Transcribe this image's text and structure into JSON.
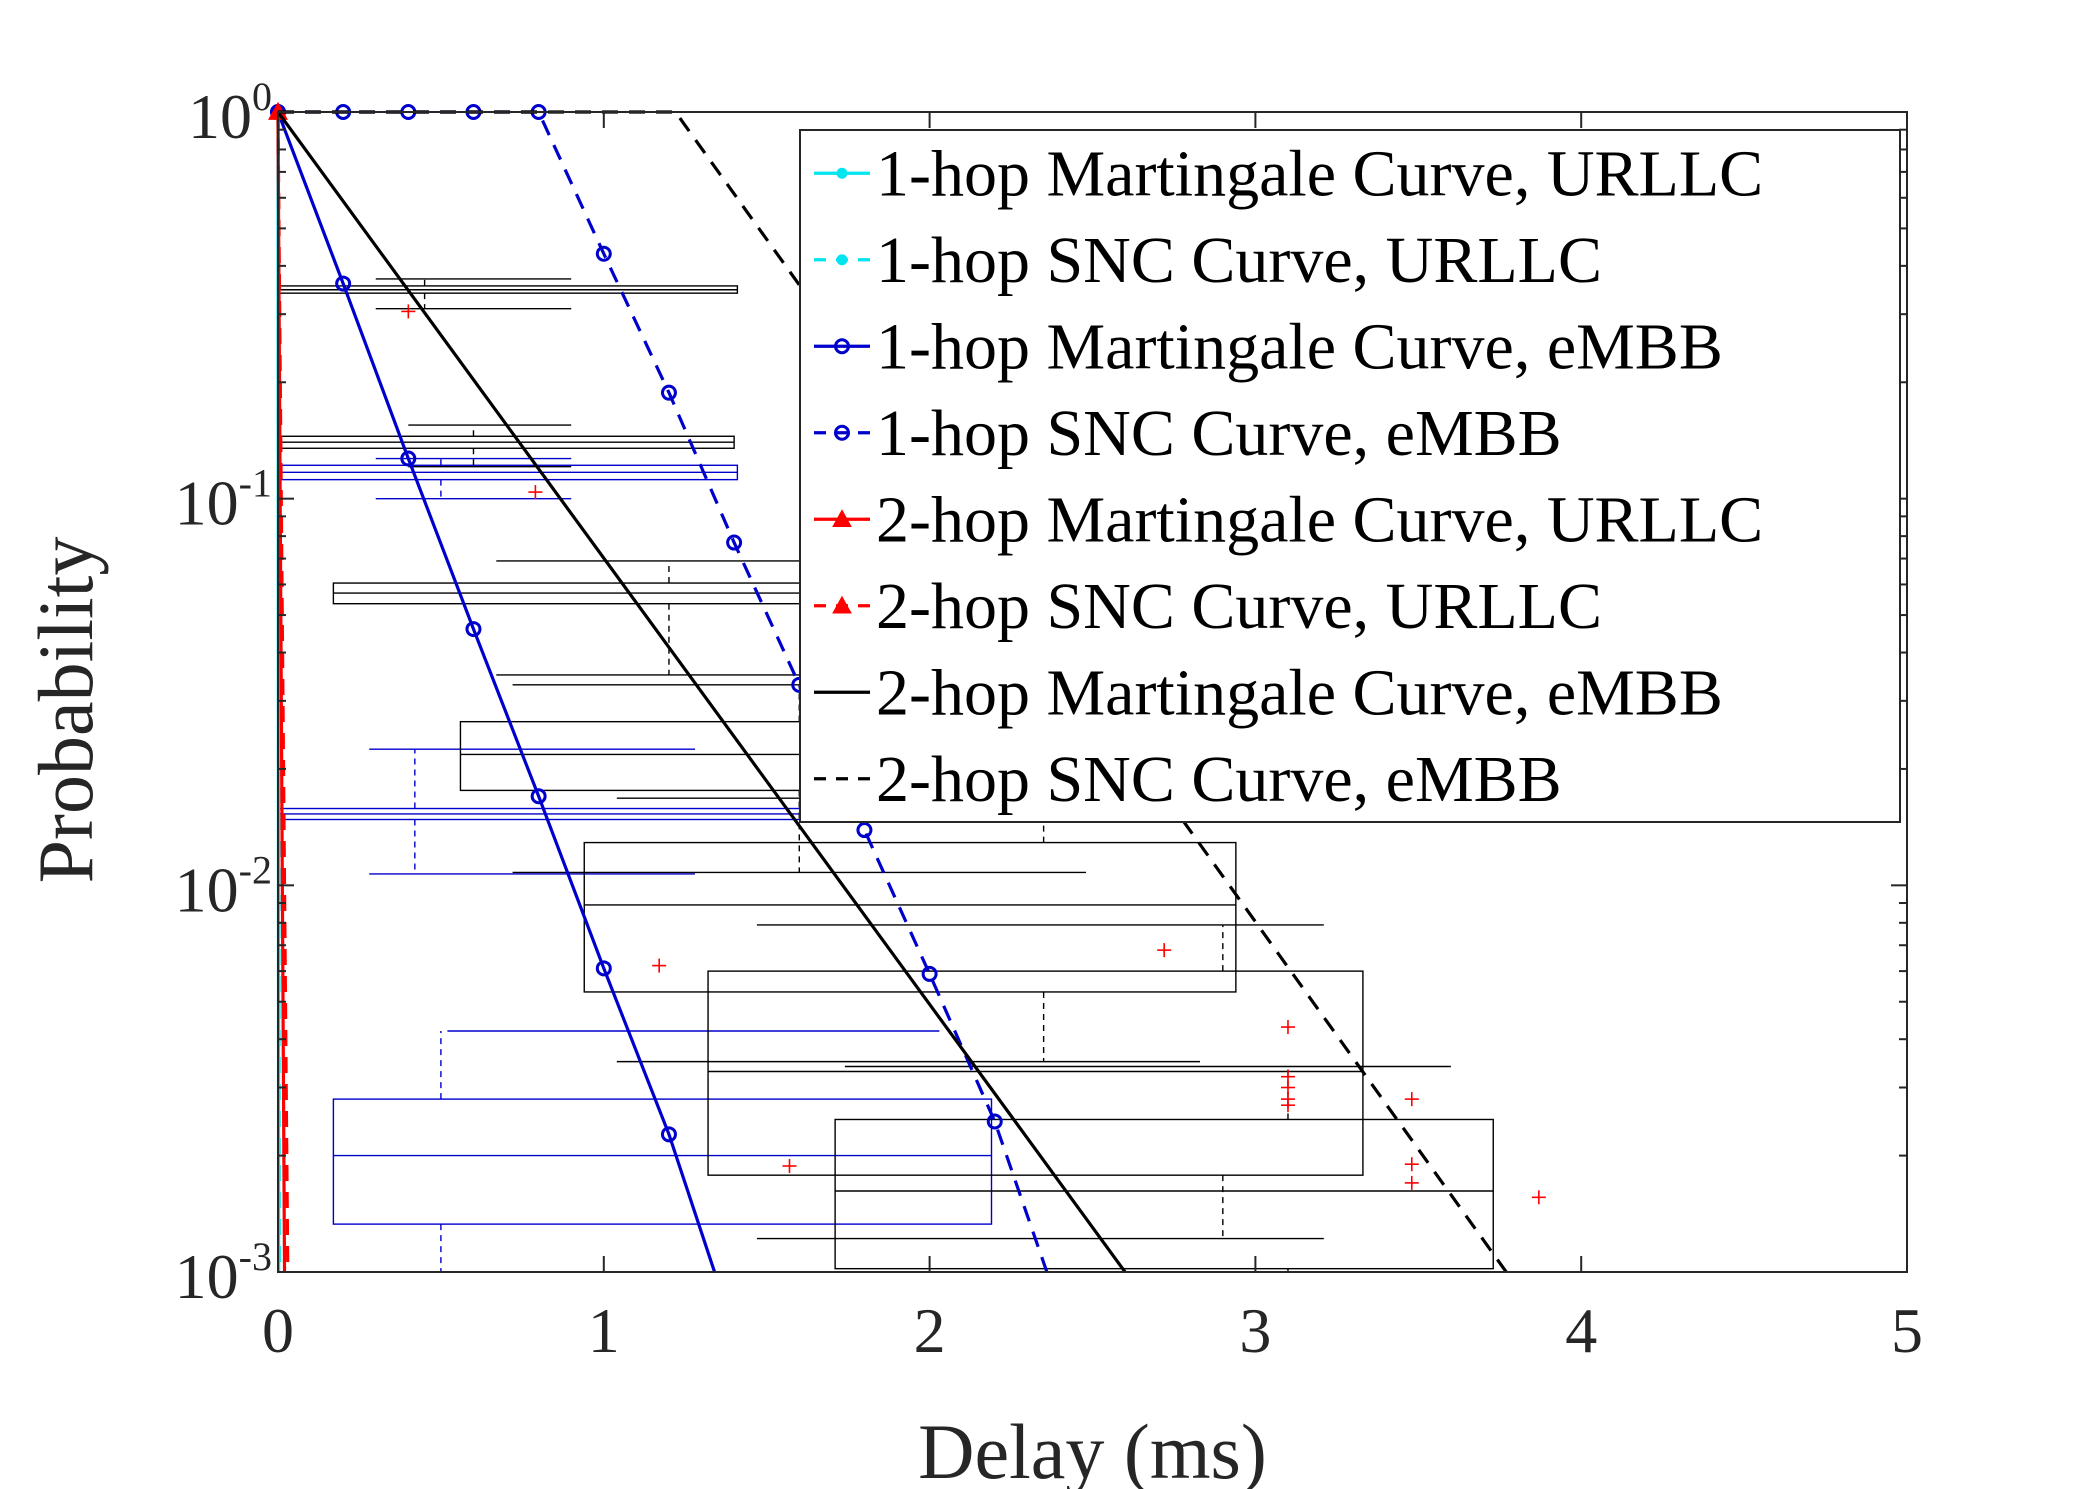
{
  "chart_data": {
    "type": "line",
    "xlabel": "Delay (ms)",
    "ylabel": "Probability",
    "xlim": [
      0,
      5
    ],
    "ylim": [
      0.001,
      1
    ],
    "yscale": "log",
    "x_ticks": [
      "0",
      "1",
      "2",
      "3",
      "4",
      "5"
    ],
    "y_ticks": [
      {
        "base": "10",
        "exp": "0",
        "value": 1
      },
      {
        "base": "10",
        "exp": "-1",
        "value": 0.1
      },
      {
        "base": "10",
        "exp": "-2",
        "value": 0.01
      },
      {
        "base": "10",
        "exp": "-3",
        "value": 0.001
      }
    ],
    "grid": false,
    "legend_position": "top-right",
    "series": [
      {
        "name": "1-hop Martingale Curve, URLLC",
        "color": "#00e5ee",
        "dash": "solid",
        "marker": "dot",
        "x": [
          0,
          0.002
        ],
        "y": [
          1,
          0.001
        ]
      },
      {
        "name": "1-hop SNC Curve, URLLC",
        "color": "#00e5ee",
        "dash": "dashed",
        "marker": "dot",
        "x": [
          0,
          0.004
        ],
        "y": [
          1,
          0.001
        ]
      },
      {
        "name": "1-hop Martingale Curve, eMBB",
        "color": "#0000cc",
        "dash": "solid",
        "marker": "circle",
        "x": [
          0,
          0.2,
          0.4,
          0.6,
          0.8,
          1.0,
          1.2,
          1.34
        ],
        "y": [
          1,
          0.36,
          0.127,
          0.046,
          0.017,
          0.0061,
          0.00227,
          0.001
        ]
      },
      {
        "name": "1-hop SNC Curve, eMBB",
        "color": "#0000cc",
        "dash": "dashed",
        "marker": "circle",
        "x": [
          0,
          0.2,
          0.4,
          0.6,
          0.8,
          1.0,
          1.2,
          1.4,
          1.6,
          1.8,
          2.0,
          2.2,
          2.36
        ],
        "y": [
          1,
          1,
          1,
          1,
          1,
          0.43,
          0.188,
          0.077,
          0.033,
          0.0139,
          0.0059,
          0.00245,
          0.001
        ]
      },
      {
        "name": "2-hop Martingale Curve, URLLC",
        "color": "#ff0000",
        "dash": "solid",
        "marker": "triangle",
        "x": [
          0,
          0.02
        ],
        "y": [
          1,
          0.001
        ]
      },
      {
        "name": "2-hop SNC Curve, URLLC",
        "color": "#ff0000",
        "dash": "dashed",
        "marker": "triangle",
        "x": [
          0,
          0.03
        ],
        "y": [
          1,
          0.001
        ]
      },
      {
        "name": "2-hop Martingale Curve, eMBB",
        "color": "#000000",
        "dash": "solid",
        "marker": "none",
        "x": [
          0,
          2.6
        ],
        "y": [
          1,
          0.001
        ]
      },
      {
        "name": "2-hop SNC Curve, eMBB",
        "color": "#000000",
        "dash": "dashed",
        "marker": "none",
        "x": [
          0,
          1.22,
          3.77
        ],
        "y": [
          1,
          1,
          0.001
        ]
      }
    ],
    "boxplots": [
      {
        "color": "#0000cc",
        "x_center": 0.5,
        "x_box": [
          0.17,
          2.19
        ],
        "x_whiskers": [
          0.52,
          2.03
        ],
        "y_box": [
          0.00133,
          0.0028
        ],
        "y_median": 0.002,
        "y_whiskers": [
          0.001,
          0.0042
        ]
      },
      {
        "color": "#0000cc",
        "x_center": 0.42,
        "x_box": [
          0.0,
          1.76
        ],
        "x_whiskers": [
          0.28,
          1.28
        ],
        "y_box": [
          0.0148,
          0.0158
        ],
        "y_median": 0.0153,
        "y_whiskers": [
          0.0107,
          0.0225
        ]
      },
      {
        "color": "#0000cc",
        "x_center": 0.5,
        "x_box": [
          0.0,
          1.41
        ],
        "x_whiskers": [
          0.3,
          0.9
        ],
        "y_box": [
          0.112,
          0.122
        ],
        "y_median": 0.117,
        "y_whiskers": [
          0.1,
          0.127
        ]
      },
      {
        "color": "#000000",
        "x_center": 0.45,
        "x_box": [
          0.0,
          1.41
        ],
        "x_whiskers": [
          0.3,
          0.9
        ],
        "y_box": [
          0.34,
          0.355
        ],
        "y_median": 0.347,
        "y_whiskers": [
          0.31,
          0.37
        ]
      },
      {
        "color": "#000000",
        "x_center": 0.6,
        "x_box": [
          0.0,
          1.4
        ],
        "x_whiskers": [
          0.4,
          0.9
        ],
        "y_box": [
          0.135,
          0.145
        ],
        "y_median": 0.14,
        "y_whiskers": [
          0.121,
          0.155
        ]
      },
      {
        "color": "#000000",
        "x_center": 1.2,
        "x_box": [
          0.17,
          2.08
        ],
        "x_whiskers": [
          0.67,
          1.97
        ],
        "y_box": [
          0.0535,
          0.0605
        ],
        "y_median": 0.057,
        "y_whiskers": [
          0.035,
          0.069
        ]
      },
      {
        "color": "#000000",
        "x_center": 1.6,
        "x_box": [
          0.56,
          2.42
        ],
        "x_whiskers": [
          0.72,
          2.48
        ],
        "y_box": [
          0.0176,
          0.0265
        ],
        "y_median": 0.0218,
        "y_whiskers": [
          0.0108,
          0.033
        ]
      },
      {
        "color": "#000000",
        "x_center": 2.35,
        "x_box": [
          0.94,
          2.94
        ],
        "x_whiskers": [
          1.04,
          2.83
        ],
        "y_box": [
          0.0053,
          0.0129
        ],
        "y_median": 0.0089,
        "y_whiskers": [
          0.0035,
          0.0168
        ]
      },
      {
        "color": "#000000",
        "x_center": 2.9,
        "x_box": [
          1.32,
          3.33
        ],
        "x_whiskers": [
          1.47,
          3.21
        ],
        "y_box": [
          0.00178,
          0.006
        ],
        "y_median": 0.0033,
        "y_whiskers": [
          0.00122,
          0.0079
        ]
      },
      {
        "color": "#000000",
        "x_center": 3.1,
        "x_box": [
          1.71,
          3.73
        ],
        "x_whiskers": [
          1.74,
          3.6
        ],
        "y_box": [
          0.00102,
          0.00248
        ],
        "y_median": 0.00162,
        "y_whiskers": [
          0.001,
          0.0034
        ]
      }
    ],
    "outliers": [
      {
        "x": 0.4,
        "y": 0.305
      },
      {
        "x": 0.79,
        "y": 0.104
      },
      {
        "x": 1.17,
        "y": 0.0062
      },
      {
        "x": 1.57,
        "y": 0.00188
      },
      {
        "x": 2.72,
        "y": 0.0068
      },
      {
        "x": 3.1,
        "y": 0.0043
      },
      {
        "x": 3.1,
        "y": 0.0032
      },
      {
        "x": 3.1,
        "y": 0.003
      },
      {
        "x": 3.1,
        "y": 0.0028
      },
      {
        "x": 3.1,
        "y": 0.0027
      },
      {
        "x": 3.48,
        "y": 0.0028
      },
      {
        "x": 3.48,
        "y": 0.0019
      },
      {
        "x": 3.48,
        "y": 0.0017
      },
      {
        "x": 3.87,
        "y": 0.00156
      }
    ]
  }
}
